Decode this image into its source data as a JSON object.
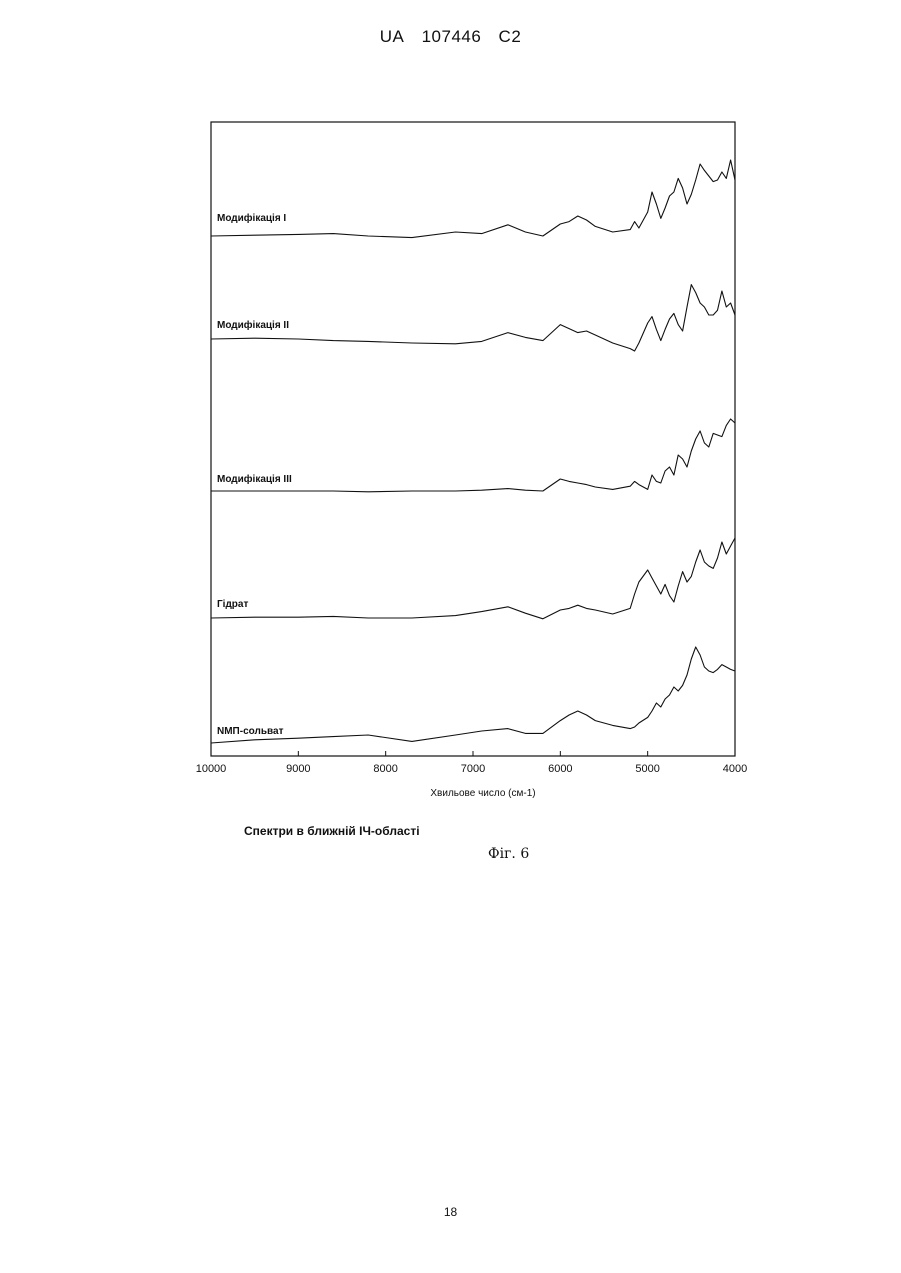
{
  "header": {
    "country": "UA",
    "number": "107446",
    "kind": "C2"
  },
  "caption": "Спектри в ближній ІЧ-області",
  "figure_label": "Фіг. 6",
  "page_number": "18",
  "chart_data": {
    "type": "line",
    "title": "",
    "xlabel": "Хвильове число (см-1)",
    "ylabel": "",
    "xlim": [
      10000,
      4000
    ],
    "x_reversed": true,
    "xticks": [
      "10000",
      "9000",
      "8000",
      "7000",
      "6000",
      "5000",
      "4000"
    ],
    "grid": false,
    "legend": "none",
    "line_color": "#111111",
    "x": [
      10000,
      9500,
      9000,
      8600,
      8200,
      7700,
      7200,
      6900,
      6600,
      6400,
      6200,
      6000,
      5900,
      5800,
      5700,
      5600,
      5400,
      5200,
      5150,
      5100,
      5000,
      4950,
      4900,
      4850,
      4800,
      4750,
      4700,
      4650,
      4600,
      4550,
      4500,
      4450,
      4400,
      4350,
      4300,
      4250,
      4200,
      4150,
      4100,
      4050,
      4000
    ],
    "series": [
      {
        "name": "Модифікація I",
        "values": [
          0.0,
          0.01,
          0.02,
          0.03,
          0.0,
          -0.02,
          0.05,
          0.03,
          0.14,
          0.05,
          0.0,
          0.15,
          0.18,
          0.25,
          0.2,
          0.12,
          0.05,
          0.08,
          0.18,
          0.1,
          0.3,
          0.55,
          0.4,
          0.22,
          0.35,
          0.5,
          0.55,
          0.72,
          0.6,
          0.4,
          0.52,
          0.7,
          0.9,
          0.82,
          0.75,
          0.68,
          0.7,
          0.8,
          0.72,
          0.95,
          0.7
        ]
      },
      {
        "name": "Модифікація II",
        "values": [
          0.0,
          0.01,
          0.0,
          -0.02,
          -0.03,
          -0.05,
          -0.06,
          -0.03,
          0.08,
          0.02,
          -0.02,
          0.18,
          0.13,
          0.08,
          0.1,
          0.05,
          -0.05,
          -0.12,
          -0.15,
          -0.05,
          0.2,
          0.28,
          0.12,
          -0.02,
          0.12,
          0.25,
          0.32,
          0.18,
          0.1,
          0.4,
          0.68,
          0.58,
          0.45,
          0.4,
          0.3,
          0.3,
          0.36,
          0.6,
          0.4,
          0.45,
          0.3
        ]
      },
      {
        "name": "Модифікація III",
        "values": [
          0.0,
          0.0,
          0.0,
          0.0,
          -0.01,
          0.0,
          0.0,
          0.01,
          0.03,
          0.01,
          0.0,
          0.15,
          0.12,
          0.1,
          0.08,
          0.05,
          0.02,
          0.06,
          0.12,
          0.08,
          0.02,
          0.2,
          0.12,
          0.1,
          0.25,
          0.3,
          0.2,
          0.45,
          0.4,
          0.3,
          0.5,
          0.65,
          0.75,
          0.6,
          0.55,
          0.72,
          0.7,
          0.68,
          0.82,
          0.9,
          0.85
        ]
      },
      {
        "name": "Гідрат",
        "values": [
          0.0,
          0.01,
          0.01,
          0.02,
          0.0,
          0.0,
          0.03,
          0.08,
          0.14,
          0.06,
          -0.01,
          0.1,
          0.12,
          0.16,
          0.12,
          0.1,
          0.05,
          0.12,
          0.3,
          0.45,
          0.6,
          0.5,
          0.4,
          0.3,
          0.42,
          0.28,
          0.2,
          0.4,
          0.58,
          0.45,
          0.52,
          0.7,
          0.85,
          0.7,
          0.65,
          0.62,
          0.75,
          0.95,
          0.8,
          0.9,
          1.0
        ]
      },
      {
        "name": "NMП-сольват",
        "values": [
          0.0,
          0.04,
          0.06,
          0.08,
          0.1,
          0.02,
          0.1,
          0.15,
          0.18,
          0.12,
          0.12,
          0.28,
          0.35,
          0.4,
          0.35,
          0.28,
          0.22,
          0.18,
          0.2,
          0.25,
          0.32,
          0.4,
          0.5,
          0.45,
          0.55,
          0.6,
          0.7,
          0.65,
          0.72,
          0.85,
          1.05,
          1.2,
          1.1,
          0.95,
          0.9,
          0.88,
          0.92,
          0.98,
          0.95,
          0.92,
          0.9
        ]
      }
    ]
  }
}
